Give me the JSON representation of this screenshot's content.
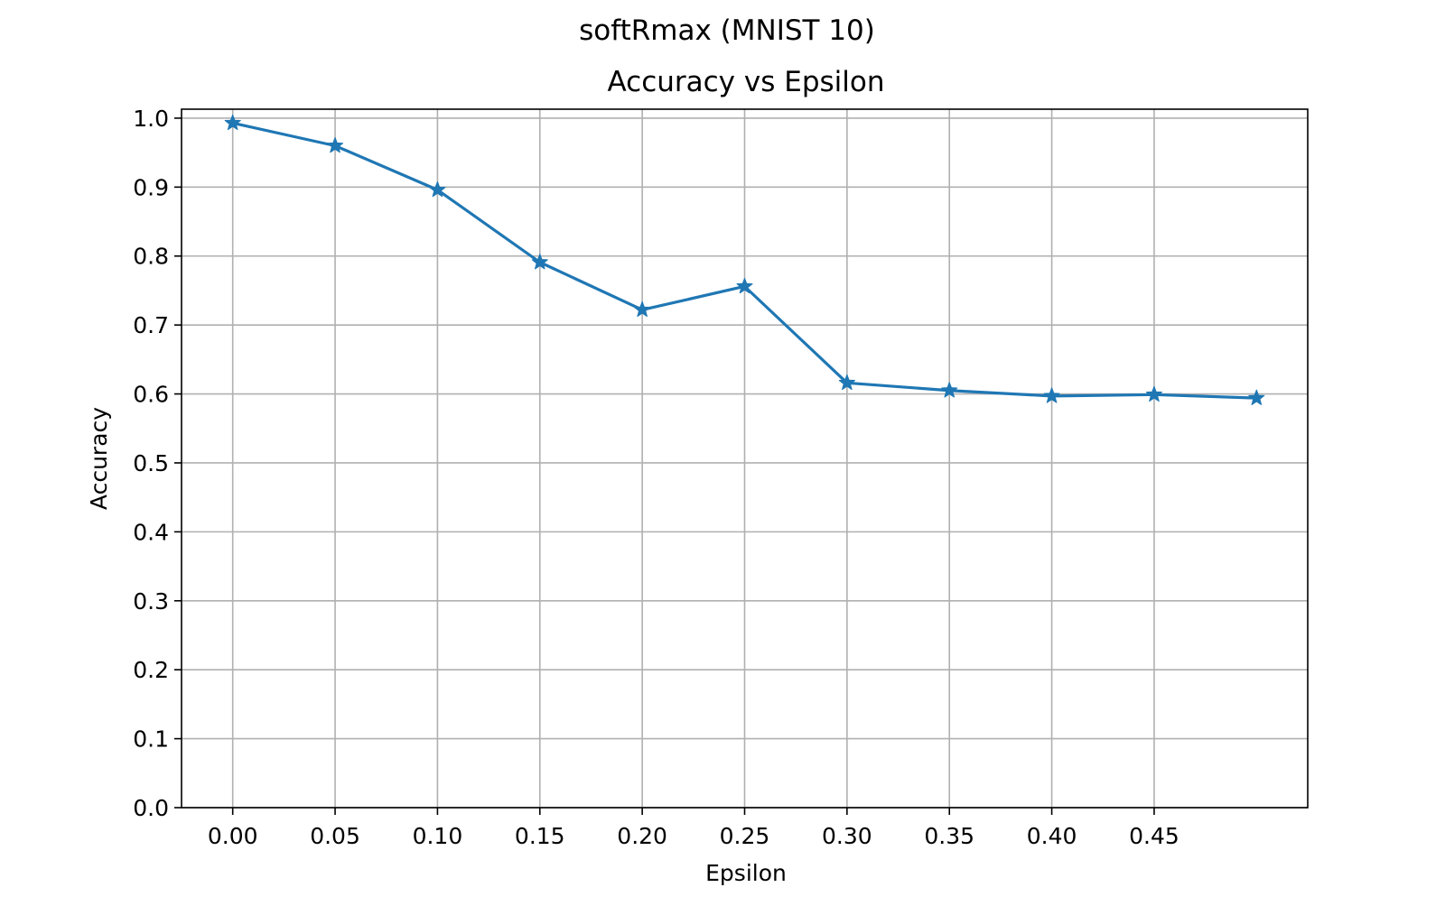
{
  "figure": {
    "suptitle": "softRmax (MNIST 10)"
  },
  "chart_data": {
    "type": "line",
    "title": "Accuracy vs Epsilon",
    "xlabel": "Epsilon",
    "ylabel": "Accuracy",
    "x": [
      0.0,
      0.05,
      0.1,
      0.15,
      0.2,
      0.25,
      0.3,
      0.35,
      0.4,
      0.45,
      0.5
    ],
    "series": [
      {
        "values": [
          0.993,
          0.96,
          0.896,
          0.791,
          0.722,
          0.756,
          0.616,
          0.605,
          0.597,
          0.599,
          0.594
        ],
        "color": "#1f77b4",
        "marker": "star"
      }
    ],
    "xlim": [
      -0.025,
      0.525
    ],
    "ylim": [
      0.0,
      1.013
    ],
    "xticks": [
      "0.00",
      "0.05",
      "0.10",
      "0.15",
      "0.20",
      "0.25",
      "0.30",
      "0.35",
      "0.40",
      "0.45"
    ],
    "xtick_values": [
      0.0,
      0.05,
      0.1,
      0.15,
      0.2,
      0.25,
      0.3,
      0.35,
      0.4,
      0.45
    ],
    "yticks": [
      "0.0",
      "0.1",
      "0.2",
      "0.3",
      "0.4",
      "0.5",
      "0.6",
      "0.7",
      "0.8",
      "0.9",
      "1.0"
    ],
    "ytick_values": [
      0.0,
      0.1,
      0.2,
      0.3,
      0.4,
      0.5,
      0.6,
      0.7,
      0.8,
      0.9,
      1.0
    ],
    "grid": true,
    "legend": false
  }
}
